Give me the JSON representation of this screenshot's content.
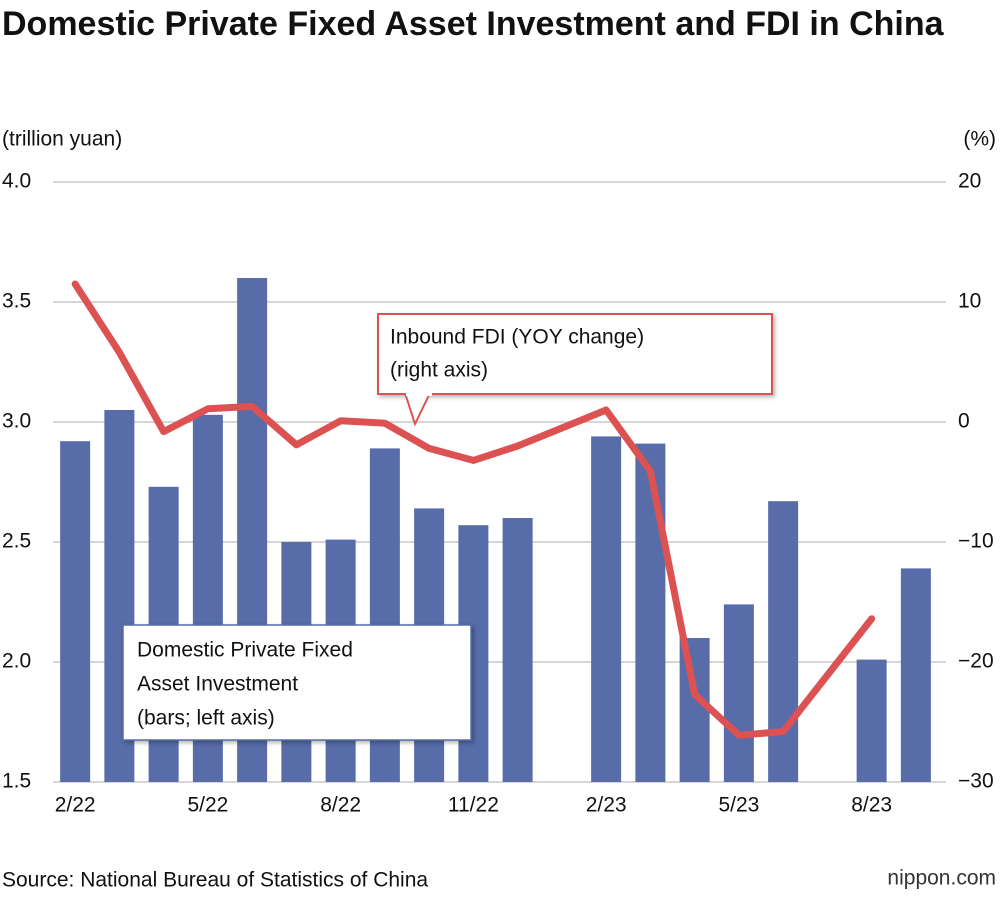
{
  "chart_data": {
    "type": "bar_line",
    "title": "Domestic Private Fixed Asset Investment and FDI in China",
    "y_label": "(trillion yuan)",
    "y2_label": "(%)",
    "categories": [
      "2/22",
      null,
      null,
      "5/22",
      null,
      null,
      "8/22",
      null,
      null,
      "11/22",
      null,
      null,
      "2/23",
      null,
      null,
      "5/23",
      null,
      null,
      "8/23",
      null
    ],
    "series": [
      {
        "name": "Domestic Private Fixed Asset Investment",
        "type": "bar",
        "color": "#576ca8",
        "values": [
          2.92,
          3.05,
          2.73,
          3.03,
          3.6,
          2.5,
          2.51,
          2.89,
          2.64,
          2.57,
          2.6,
          null,
          2.94,
          2.91,
          2.1,
          2.24,
          2.67,
          null,
          2.01,
          2.39
        ]
      },
      {
        "name": "Inbound FDI (YOY change)",
        "type": "line",
        "axis": "y2",
        "color": "#dc5252",
        "values": [
          11.5,
          5.8,
          -0.8,
          1.1,
          1.3,
          -1.9,
          0.1,
          -0.1,
          -2.2,
          -3.2,
          -2.0,
          -0.5,
          1.0,
          -4.1,
          -22.7,
          -26.1,
          -25.8,
          -21.1,
          -16.4,
          null
        ]
      }
    ],
    "annotations": [
      {
        "lines": [
          "Inbound FDI (YOY change)",
          "(right axis)"
        ]
      },
      {
        "lines": [
          "Domestic Private Fixed",
          "Asset Investment",
          "(bars; left axis)"
        ]
      }
    ],
    "ylim": [
      1.5,
      4.0
    ],
    "yticks": [
      {
        "value": 1.5,
        "label": "1.5"
      },
      {
        "value": 2,
        "label": "2.0"
      },
      {
        "value": 2.5,
        "label": "2.5"
      },
      {
        "value": 3,
        "label": "3.0"
      },
      {
        "value": 3.5,
        "label": "3.5"
      },
      {
        "value": 4,
        "label": "4.0"
      }
    ],
    "y2lim": [
      -30,
      20
    ],
    "y2ticks": [
      {
        "value": -30,
        "label": "−30"
      },
      {
        "value": -20,
        "label": "−20"
      },
      {
        "value": -10,
        "label": "−10"
      },
      0,
      10,
      20
    ],
    "grid": true,
    "source": "Source: National Bureau of Statistics of China",
    "logo": "nippon.com"
  }
}
